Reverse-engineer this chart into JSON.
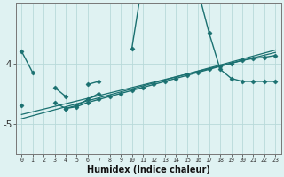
{
  "xlabel": "Humidex (Indice chaleur)",
  "x_values": [
    0,
    1,
    2,
    3,
    4,
    5,
    6,
    7,
    8,
    9,
    10,
    11,
    12,
    13,
    14,
    15,
    16,
    17,
    18,
    19,
    20,
    21,
    22,
    23
  ],
  "line1_y": [
    -3.8,
    -4.15,
    null,
    -4.4,
    -4.55,
    null,
    -4.35,
    -4.3,
    null,
    null,
    -3.75,
    -2.6,
    -1.5,
    -0.8,
    -1.3,
    -2.0,
    -2.8,
    -3.5,
    -4.1,
    -4.25,
    -4.3,
    -4.3,
    -4.3,
    -4.3
  ],
  "line2_y": [
    null,
    null,
    null,
    null,
    -4.75,
    -4.7,
    -4.6,
    -4.5,
    null,
    null,
    null,
    null,
    null,
    null,
    null,
    null,
    null,
    null,
    null,
    null,
    null,
    null,
    null,
    null
  ],
  "line3_y": [
    -4.7,
    null,
    null,
    -4.65,
    -4.75,
    -4.72,
    -4.65,
    -4.6,
    -4.55,
    -4.5,
    -4.45,
    -4.4,
    -4.35,
    -4.3,
    -4.25,
    -4.2,
    -4.15,
    -4.1,
    -4.05,
    -4.0,
    -3.95,
    -3.92,
    -3.9,
    -3.87
  ],
  "line4_y": [
    -4.85,
    null,
    null,
    null,
    null,
    null,
    null,
    null,
    null,
    null,
    null,
    null,
    null,
    null,
    null,
    null,
    null,
    null,
    null,
    null,
    null,
    null,
    null,
    -3.82
  ],
  "line5_y": [
    -4.92,
    null,
    null,
    null,
    null,
    null,
    null,
    null,
    null,
    null,
    null,
    null,
    null,
    null,
    null,
    null,
    null,
    null,
    null,
    null,
    null,
    null,
    null,
    -3.78
  ],
  "bg_color": "#dff2f2",
  "line_color": "#1a7070",
  "grid_color": "#b8dada",
  "ylim": [
    -5.5,
    -3.0
  ],
  "yticks": [
    -5,
    -4
  ],
  "xlim": [
    -0.5,
    23.5
  ]
}
